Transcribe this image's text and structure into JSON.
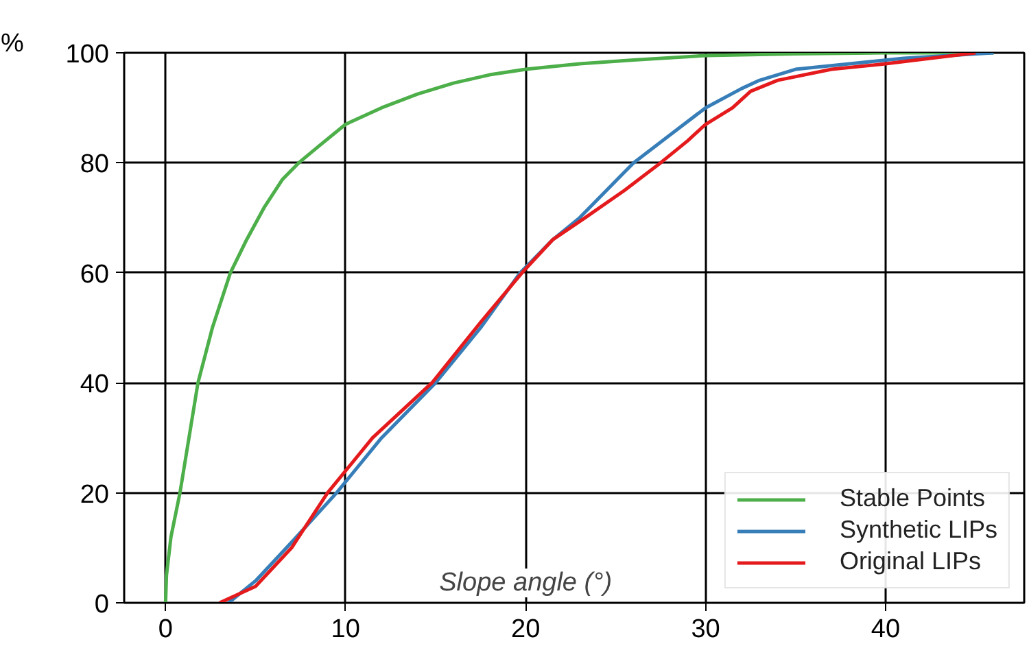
{
  "chart_data": {
    "type": "line",
    "xlabel": "Slope angle (°)",
    "ylabel": "%",
    "xlim": [
      -2.3,
      47.7
    ],
    "ylim": [
      0,
      100
    ],
    "xticks": [
      0,
      10,
      20,
      30,
      40
    ],
    "yticks": [
      0,
      20,
      40,
      60,
      80,
      100
    ],
    "grid": true,
    "legend": "bottom right",
    "line_style": "solid",
    "marker": "none",
    "series": [
      {
        "name": "Stable Points",
        "color": "#4daf4a",
        "x": [
          0,
          0.05,
          0.3,
          0.8,
          1.3,
          1.8,
          2.6,
          3.6,
          4.5,
          5.5,
          6.5,
          7.4,
          8.5,
          10,
          12,
          14,
          16,
          18,
          20,
          23,
          26,
          30,
          35,
          40,
          46
        ],
        "values": [
          0,
          5,
          12,
          20,
          30,
          40,
          50,
          60,
          66,
          72,
          77,
          80,
          83,
          87,
          90,
          92.5,
          94.5,
          96,
          97,
          98,
          98.7,
          99.5,
          99.8,
          100,
          100
        ]
      },
      {
        "name": "Synthetic LIPs",
        "color": "#377eb8",
        "x": [
          3.5,
          5,
          7,
          9.5,
          12,
          15,
          17.5,
          19.7,
          21.5,
          23,
          24.5,
          26,
          28,
          30,
          32,
          33,
          35,
          38,
          41,
          46
        ],
        "values": [
          0,
          4,
          11,
          20,
          30,
          40,
          50,
          60,
          66,
          70,
          75,
          80,
          85,
          90,
          93.5,
          95,
          97,
          98,
          99,
          100
        ]
      },
      {
        "name": "Original LIPs",
        "color": "#e41a1c",
        "x": [
          3,
          5,
          7,
          9,
          11.5,
          14.8,
          17.5,
          19.8,
          21.5,
          23.3,
          25.5,
          27.5,
          29,
          30,
          31.5,
          32.5,
          34,
          37,
          40,
          45
        ],
        "values": [
          0,
          3,
          10,
          20,
          30,
          40,
          51,
          60,
          66,
          70,
          75,
          80,
          84,
          87,
          90,
          93,
          95,
          97,
          98,
          100
        ]
      }
    ]
  }
}
